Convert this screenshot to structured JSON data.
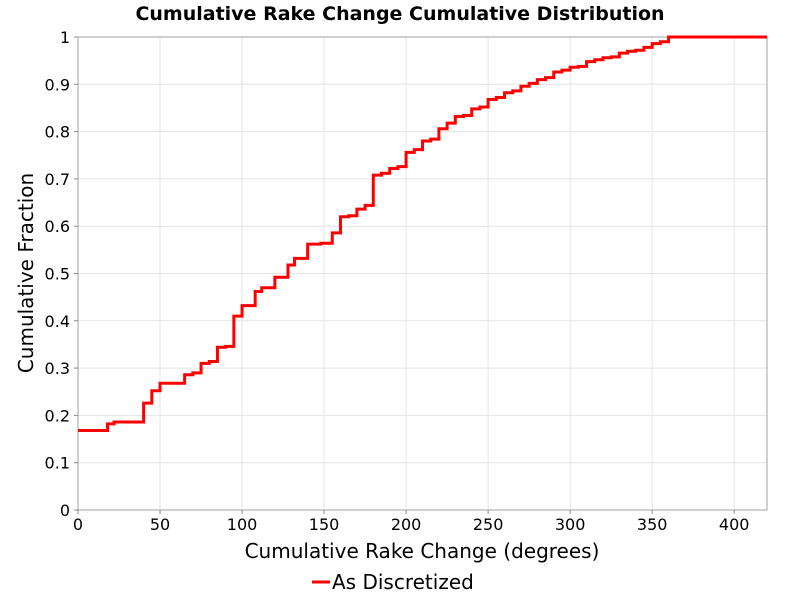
{
  "chart_data": {
    "type": "line",
    "title": "Cumulative Rake Change Cumulative Distribution",
    "xlabel": "Cumulative Rake Change (degrees)",
    "ylabel": "Cumulative Fraction",
    "xlim": [
      0,
      420
    ],
    "ylim": [
      0,
      1
    ],
    "xticks": [
      0,
      50,
      100,
      150,
      200,
      250,
      300,
      350,
      400
    ],
    "yticks": [
      0,
      0.1,
      0.2,
      0.3,
      0.4,
      0.5,
      0.6,
      0.7,
      0.8,
      0.9,
      1
    ],
    "xtick_labels": [
      "0",
      "50",
      "100",
      "150",
      "200",
      "250",
      "300",
      "350",
      "400"
    ],
    "ytick_labels": [
      "0",
      "0.1",
      "0.2",
      "0.3",
      "0.4",
      "0.5",
      "0.6",
      "0.7",
      "0.8",
      "0.9",
      "1"
    ],
    "grid": true,
    "legend_position": "bottom",
    "series": [
      {
        "name": "As Discretized",
        "color": "#ff0000",
        "step": true,
        "x": [
          0,
          18,
          22,
          30,
          40,
          45,
          50,
          55,
          65,
          70,
          75,
          80,
          85,
          90,
          95,
          100,
          108,
          112,
          120,
          128,
          132,
          140,
          148,
          155,
          160,
          165,
          170,
          175,
          180,
          185,
          190,
          195,
          200,
          205,
          210,
          215,
          220,
          225,
          230,
          235,
          240,
          245,
          250,
          255,
          260,
          265,
          270,
          275,
          280,
          285,
          290,
          295,
          300,
          305,
          310,
          315,
          320,
          325,
          330,
          335,
          340,
          345,
          350,
          355,
          360,
          370,
          380,
          390,
          400,
          420
        ],
        "y": [
          0.168,
          0.182,
          0.186,
          0.186,
          0.226,
          0.252,
          0.268,
          0.268,
          0.286,
          0.29,
          0.31,
          0.314,
          0.344,
          0.346,
          0.41,
          0.432,
          0.462,
          0.47,
          0.492,
          0.518,
          0.532,
          0.562,
          0.564,
          0.586,
          0.62,
          0.622,
          0.636,
          0.644,
          0.708,
          0.712,
          0.722,
          0.726,
          0.756,
          0.762,
          0.78,
          0.784,
          0.806,
          0.818,
          0.832,
          0.834,
          0.848,
          0.852,
          0.868,
          0.872,
          0.882,
          0.886,
          0.896,
          0.902,
          0.91,
          0.914,
          0.926,
          0.93,
          0.936,
          0.938,
          0.948,
          0.952,
          0.956,
          0.958,
          0.966,
          0.97,
          0.972,
          0.978,
          0.986,
          0.99,
          1.0,
          1.0,
          1.0,
          1.0,
          1.0,
          1.0
        ]
      }
    ]
  }
}
